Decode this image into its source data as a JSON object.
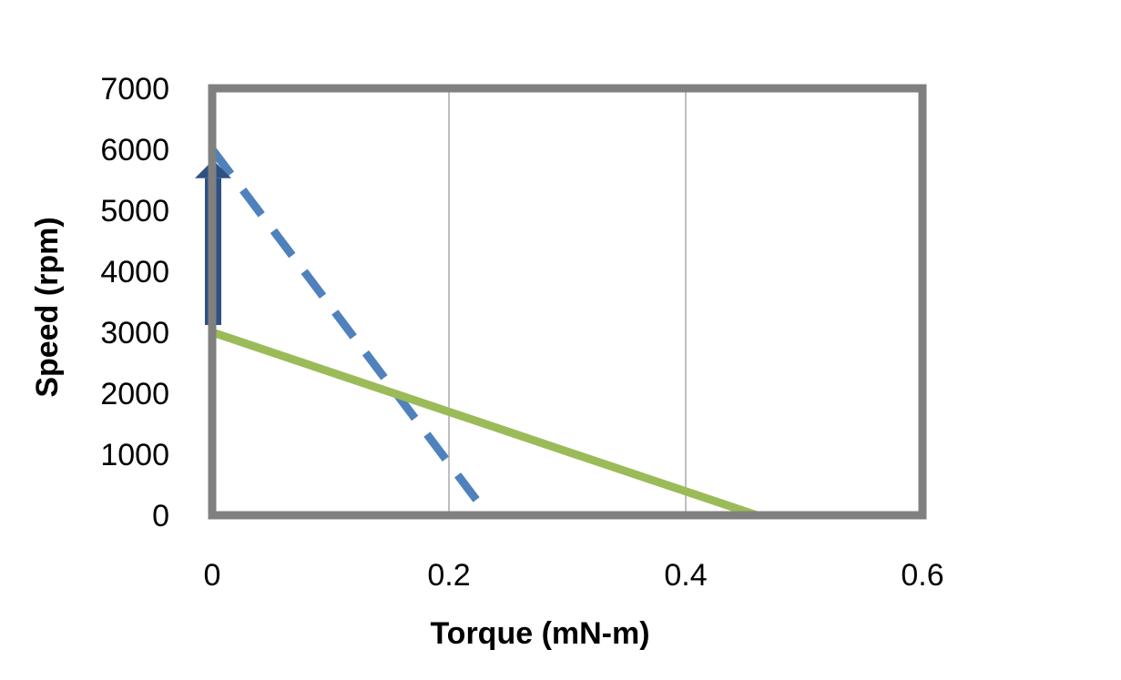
{
  "chart_data": {
    "type": "line",
    "title": "",
    "xlabel": "Torque (mN-m)",
    "ylabel": "Speed (rpm)",
    "xlim": [
      0,
      0.6
    ],
    "ylim": [
      0,
      7000
    ],
    "x_ticks": [
      "0",
      "0.2",
      "0.4",
      "0.6"
    ],
    "y_ticks": [
      "0",
      "1000",
      "2000",
      "3000",
      "4000",
      "5000",
      "6000",
      "7000"
    ],
    "x_tick_values": [
      0,
      0.2,
      0.4,
      0.6
    ],
    "y_tick_values": [
      0,
      1000,
      2000,
      3000,
      4000,
      5000,
      6000,
      7000
    ],
    "grid": "vertical",
    "legend": "none",
    "series": [
      {
        "style": "dashed",
        "color": "#4F81BD",
        "x": [
          0,
          0.233
        ],
        "y": [
          6000,
          0
        ]
      },
      {
        "style": "solid",
        "color": "#9BBB59",
        "x": [
          0,
          0.46
        ],
        "y": [
          3000,
          0
        ]
      }
    ],
    "annotations": [
      {
        "type": "arrow",
        "color": "#2E5183",
        "x": 0,
        "y_from": 3000,
        "y_to": 5600
      }
    ]
  }
}
